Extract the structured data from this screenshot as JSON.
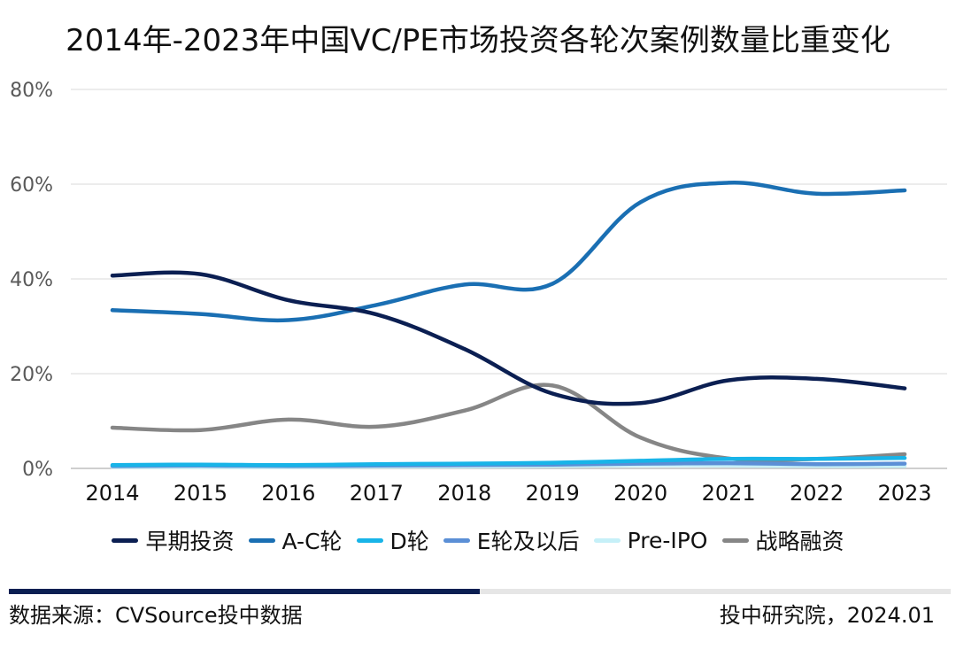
{
  "colors": {
    "early": "#0b1f52",
    "ac": "#1a6fb3",
    "d": "#18b4e8",
    "e": "#5b8fd6",
    "preipo": "#c6f0f8",
    "strategic": "#868686",
    "grid": "#d9d9d9",
    "axis": "#bfbfbf",
    "footer_bar": "#0b1f52",
    "footer_track": "#e6e6e6"
  },
  "chart_data": {
    "type": "line",
    "title": "2014年-2023年中国VC/PE市场投资各轮次案例数量比重变化",
    "xlabel": "",
    "ylabel": "",
    "x": [
      "2014",
      "2015",
      "2016",
      "2017",
      "2018",
      "2019",
      "2020",
      "2021",
      "2022",
      "2023"
    ],
    "ylim": [
      0,
      80
    ],
    "yticks": [
      0,
      20,
      40,
      60,
      80
    ],
    "ytick_labels": [
      "0%",
      "20%",
      "40%",
      "60%",
      "80%"
    ],
    "grid": true,
    "legend_position": "bottom",
    "series": [
      {
        "name": "早期投资",
        "color_key": "early",
        "values": [
          40.7,
          41.0,
          35.5,
          32.5,
          25.2,
          15.8,
          13.8,
          18.6,
          18.9,
          16.9
        ]
      },
      {
        "name": "A-C轮",
        "color_key": "ac",
        "values": [
          33.4,
          32.6,
          31.3,
          34.5,
          38.8,
          39.0,
          56.2,
          60.3,
          58.0,
          58.7
        ]
      },
      {
        "name": "D轮",
        "color_key": "d",
        "values": [
          0.7,
          0.8,
          0.7,
          0.9,
          1.0,
          1.2,
          1.6,
          2.0,
          2.0,
          2.2
        ]
      },
      {
        "name": "E轮及以后",
        "color_key": "e",
        "values": [
          0.5,
          0.6,
          0.5,
          0.6,
          0.7,
          0.8,
          1.0,
          1.1,
          0.9,
          1.0
        ]
      },
      {
        "name": "Pre-IPO",
        "color_key": "preipo",
        "values": [
          0.3,
          0.3,
          0.3,
          0.4,
          0.4,
          0.5,
          0.7,
          0.6,
          0.5,
          0.5
        ]
      },
      {
        "name": "战略融资",
        "color_key": "strategic",
        "values": [
          8.6,
          8.1,
          10.3,
          8.8,
          12.2,
          17.5,
          6.5,
          2.1,
          2.0,
          3.0
        ]
      }
    ]
  },
  "footer": {
    "source": "数据来源：CVSource投中数据",
    "credit": "投中研究院，2024.01",
    "progress_fraction": 0.5
  }
}
